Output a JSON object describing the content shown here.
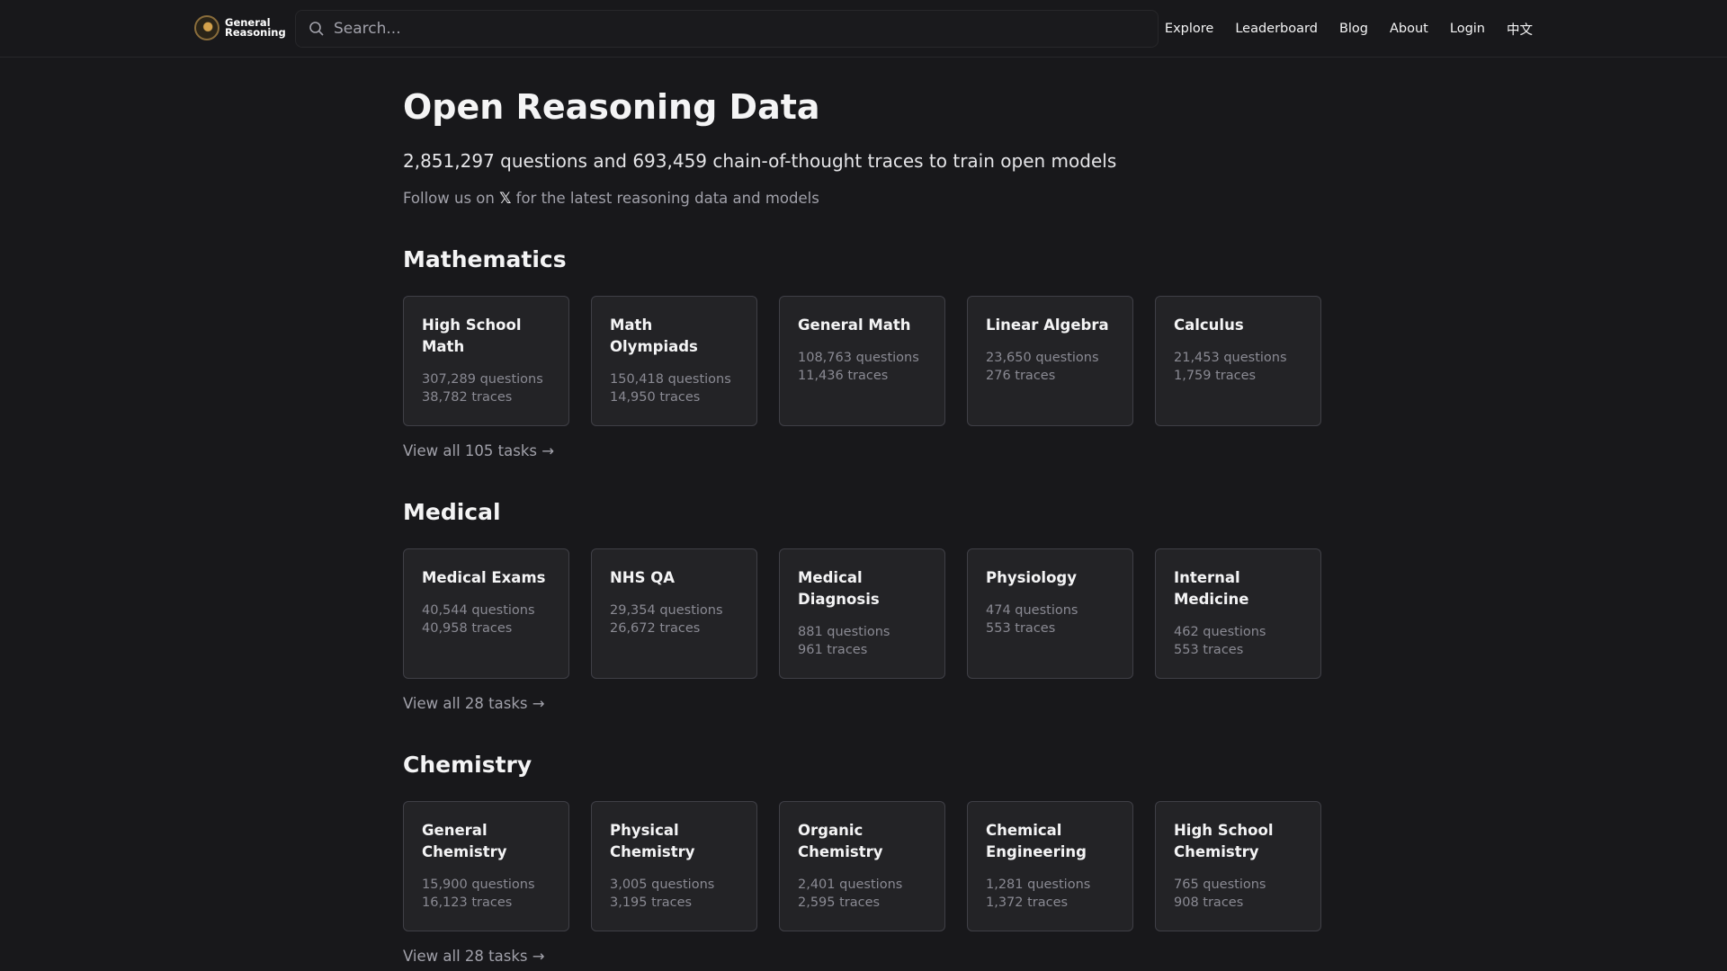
{
  "header": {
    "logo_line1": "General",
    "logo_line2": "Reasoning",
    "search_placeholder": "Search...",
    "nav": [
      "Explore",
      "Leaderboard",
      "Blog",
      "About",
      "Login",
      "中文"
    ]
  },
  "hero": {
    "title": "Open Reasoning Data",
    "subtitle": "2,851,297 questions and 693,459 chain-of-thought traces to train open models",
    "follow_prefix": "Follow us on",
    "follow_icon": "x-logo",
    "follow_suffix": "for the latest reasoning data and models"
  },
  "sections": [
    {
      "title": "Mathematics",
      "view_all": "View all 105 tasks →",
      "cards": [
        {
          "title": "High School Math",
          "questions": "307,289 questions",
          "traces": "38,782 traces"
        },
        {
          "title": "Math Olympiads",
          "questions": "150,418 questions",
          "traces": "14,950 traces"
        },
        {
          "title": "General Math",
          "questions": "108,763 questions",
          "traces": "11,436 traces"
        },
        {
          "title": "Linear Algebra",
          "questions": "23,650 questions",
          "traces": "276 traces"
        },
        {
          "title": "Calculus",
          "questions": "21,453 questions",
          "traces": "1,759 traces"
        }
      ]
    },
    {
      "title": "Medical",
      "view_all": "View all 28 tasks →",
      "cards": [
        {
          "title": "Medical Exams",
          "questions": "40,544 questions",
          "traces": "40,958 traces"
        },
        {
          "title": "NHS QA",
          "questions": "29,354 questions",
          "traces": "26,672 traces"
        },
        {
          "title": "Medical Diagnosis",
          "questions": "881 questions",
          "traces": "961 traces"
        },
        {
          "title": "Physiology",
          "questions": "474 questions",
          "traces": "553 traces"
        },
        {
          "title": "Internal Medicine",
          "questions": "462 questions",
          "traces": "553 traces"
        }
      ]
    },
    {
      "title": "Chemistry",
      "view_all": "View all 28 tasks →",
      "cards": [
        {
          "title": "General Chemistry",
          "questions": "15,900 questions",
          "traces": "16,123 traces"
        },
        {
          "title": "Physical Chemistry",
          "questions": "3,005 questions",
          "traces": "3,195 traces"
        },
        {
          "title": "Organic Chemistry",
          "questions": "2,401 questions",
          "traces": "2,595 traces"
        },
        {
          "title": "Chemical Engineering",
          "questions": "1,281 questions",
          "traces": "1,372 traces"
        },
        {
          "title": "High School Chemistry",
          "questions": "765 questions",
          "traces": "908 traces"
        }
      ]
    }
  ]
}
